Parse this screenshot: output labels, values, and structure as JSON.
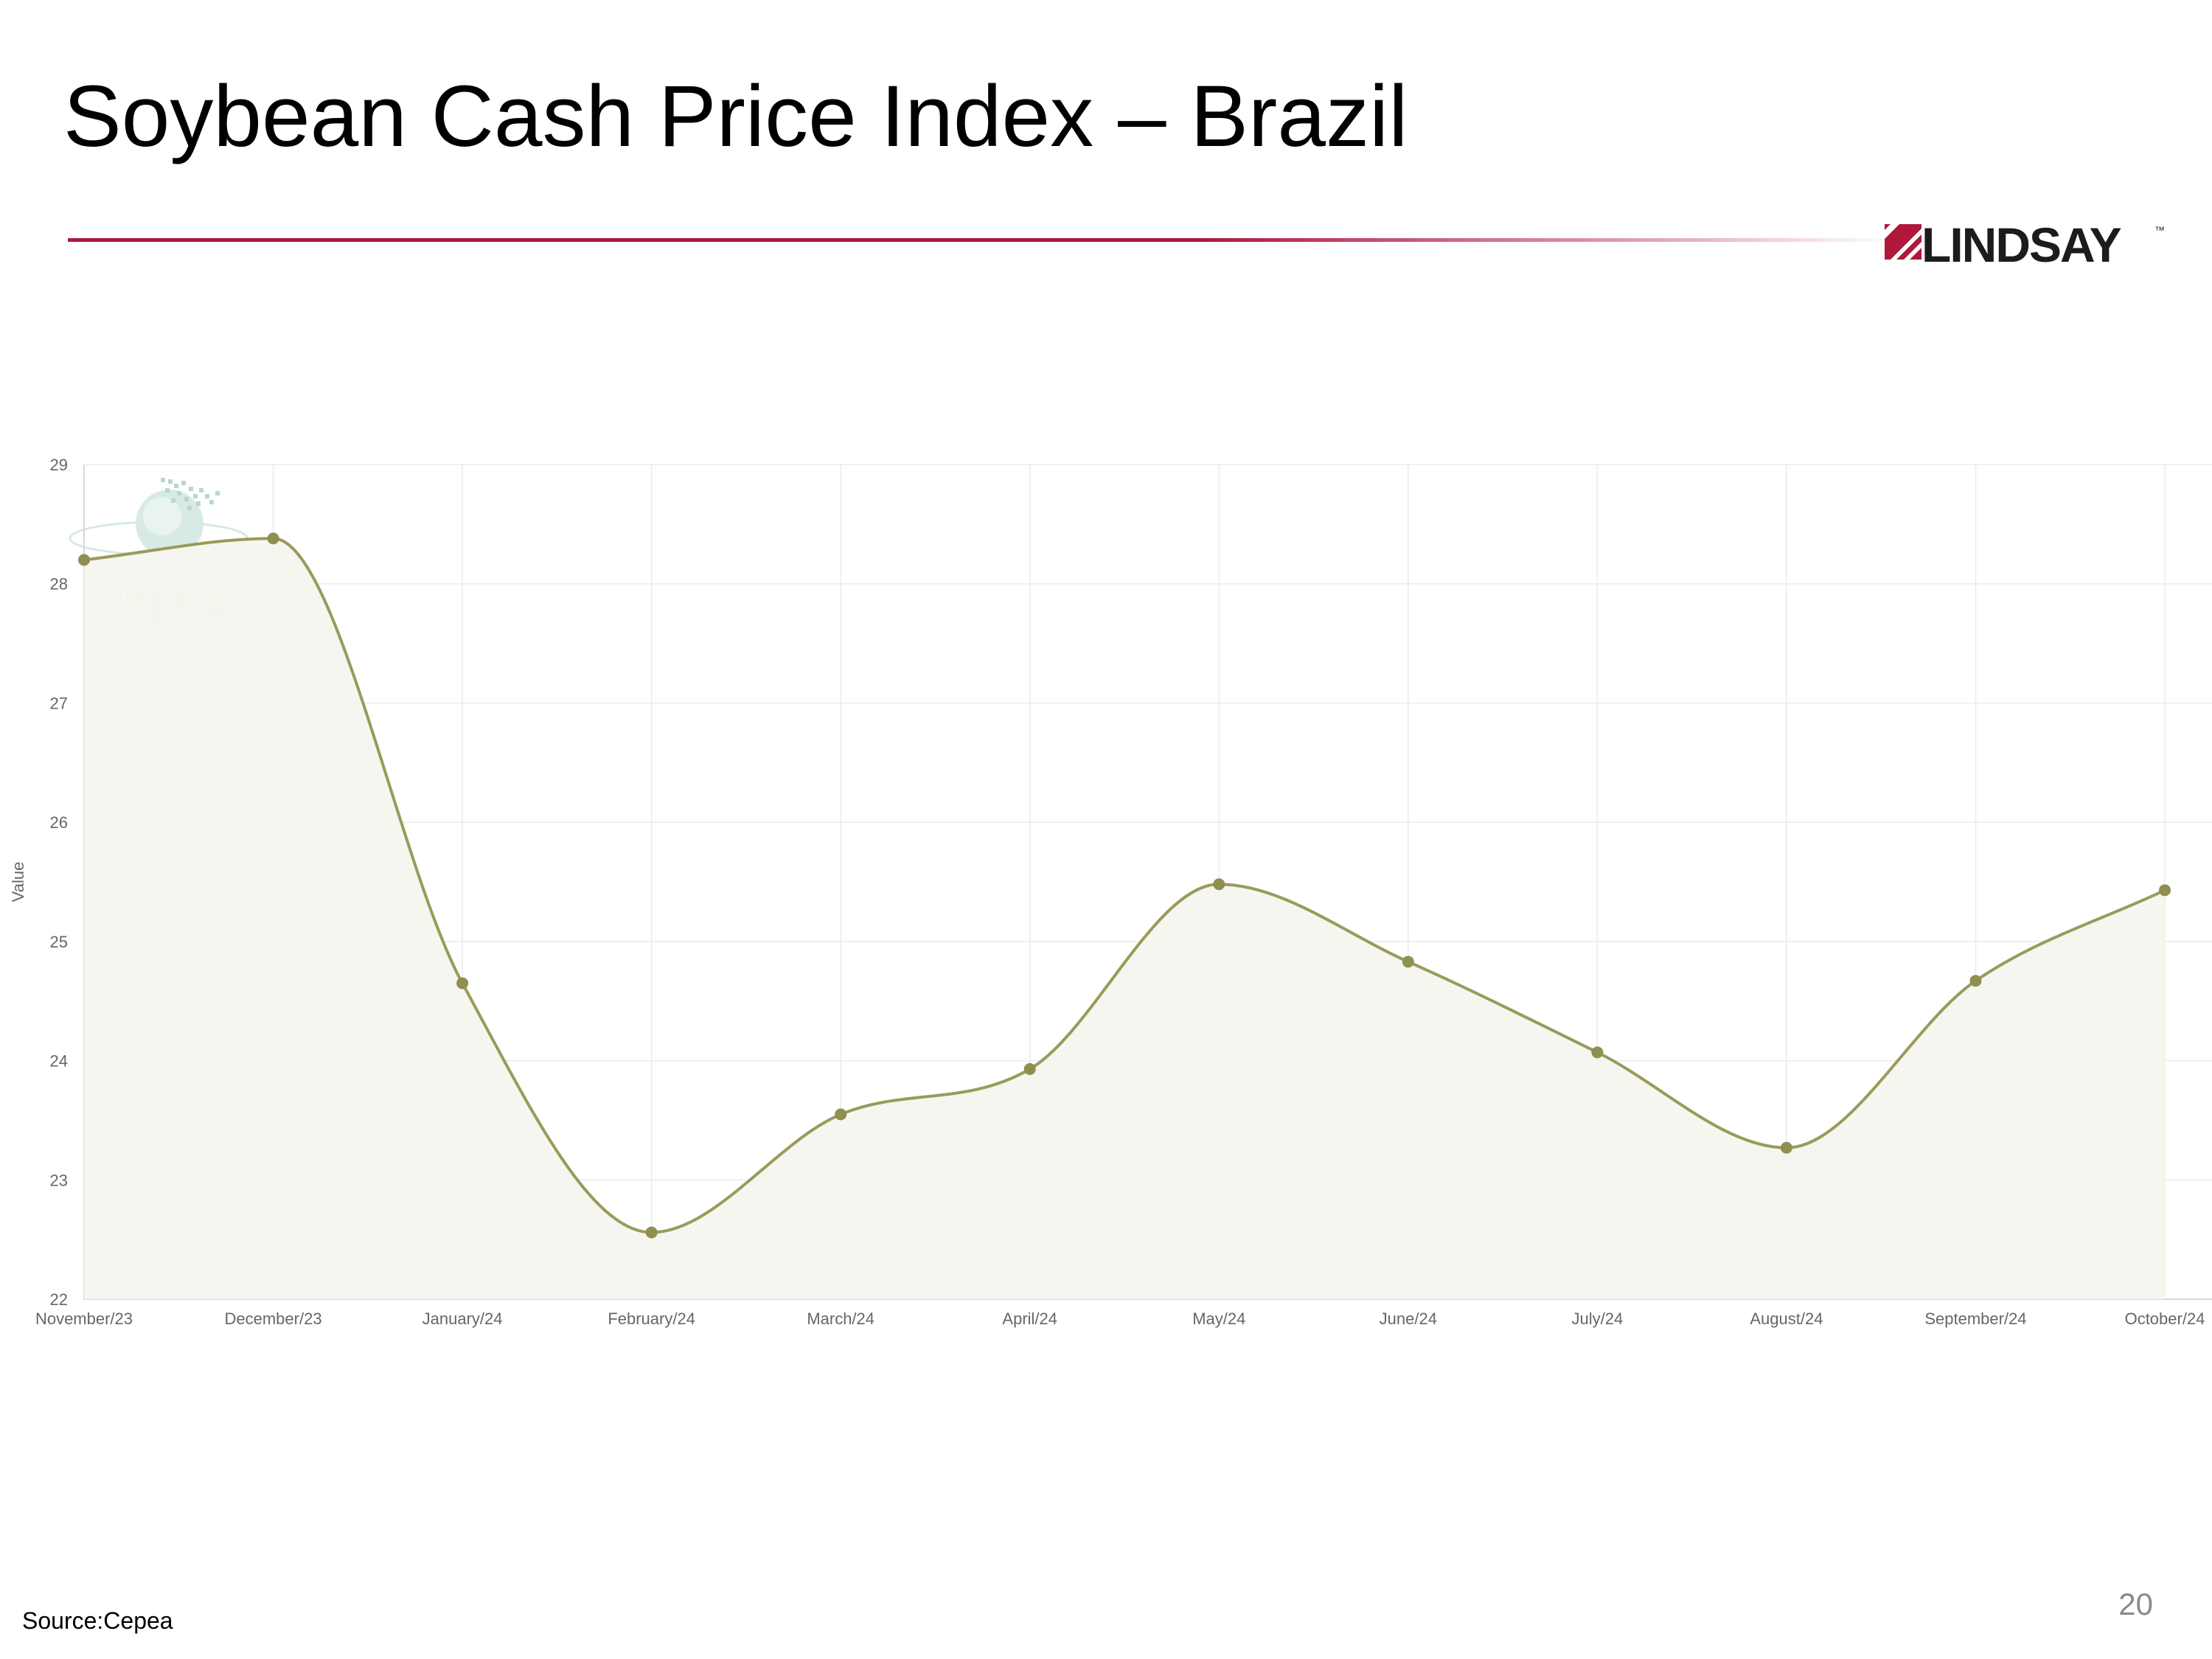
{
  "slide": {
    "title": "Soybean Cash Price Index – Brazil",
    "source": "Source:Cepea",
    "page_number": "20",
    "accent_color": "#b0173a"
  },
  "logo": {
    "text": "LINDSAY",
    "trademark": "™",
    "watermark": "cepea"
  },
  "chart_data": {
    "type": "area",
    "ylabel": "Value",
    "xlabel": "",
    "categories": [
      "November/23",
      "December/23",
      "January/24",
      "February/24",
      "March/24",
      "April/24",
      "May/24",
      "June/24",
      "July/24",
      "August/24",
      "September/24",
      "October/24"
    ],
    "series": [
      {
        "values": [
          28.2,
          28.38,
          24.65,
          22.56,
          23.55,
          23.93,
          25.48,
          24.83,
          24.07,
          23.27,
          24.67,
          25.43
        ],
        "line_color": "#9a9a5a",
        "fill_color": "#f5f5ef"
      }
    ],
    "ylim": [
      22,
      29
    ],
    "yticks": [
      22,
      23,
      24,
      25,
      26,
      27,
      28,
      29
    ],
    "grid": true,
    "legend": "none"
  }
}
